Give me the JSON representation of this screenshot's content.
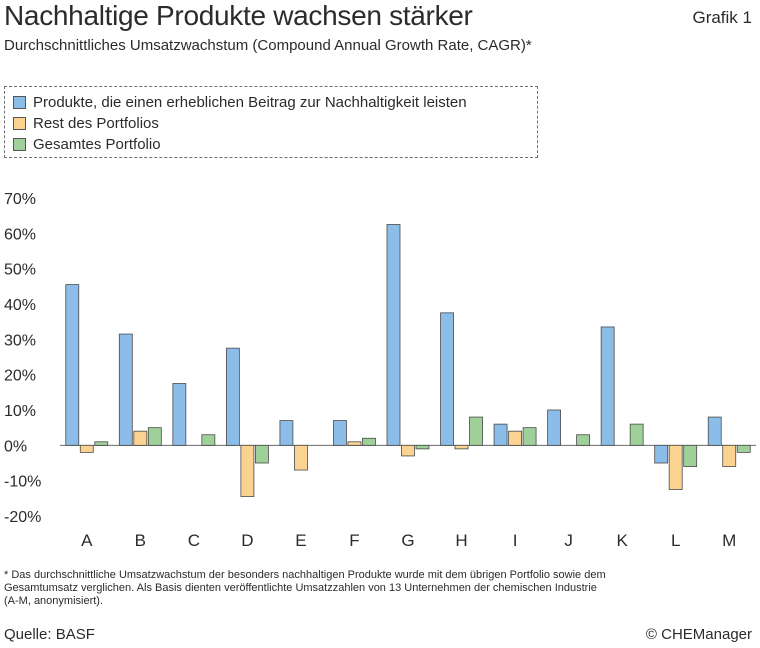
{
  "header": {
    "title": "Nachhaltige Produkte wachsen stärker",
    "figure_label": "Grafik 1",
    "subtitle": "Durchschnittliches Umsatzwachstum (Compound Annual Growth Rate, CAGR)*"
  },
  "footer": {
    "footnote": "* Das durchschnittliche Umsatzwachstum der besonders nachhaltigen Produkte wurde mit dem übrigen Portfolio sowie dem Gesamtumsatz verglichen. Als Basis dienten veröffentlichte Umsatzzahlen von 13 Unternehmen der chemischen Industrie (A-M, anonymisiert).",
    "source": "Quelle: BASF",
    "copyright": "© CHEManager"
  },
  "colors": {
    "sustainable": "#8cbde8",
    "rest": "#fbd391",
    "total": "#9fd09a",
    "bar_stroke": "#4a4a4a",
    "text": "#2b2b2b"
  },
  "chart_data": {
    "type": "bar",
    "title": "Nachhaltige Produkte wachsen stärker",
    "subtitle": "Durchschnittliches Umsatzwachstum (Compound Annual Growth Rate, CAGR)*",
    "xlabel": "",
    "ylabel": "",
    "ylim": [
      -20,
      70
    ],
    "yticks": [
      -20,
      -10,
      0,
      10,
      20,
      30,
      40,
      50,
      60,
      70
    ],
    "ytick_labels": [
      "-20%",
      "-10%",
      "0%",
      "10%",
      "20%",
      "30%",
      "40%",
      "50%",
      "60%",
      "70%"
    ],
    "grid": false,
    "legend_position": "top-left",
    "categories": [
      "A",
      "B",
      "C",
      "D",
      "E",
      "F",
      "G",
      "H",
      "I",
      "J",
      "K",
      "L",
      "M"
    ],
    "series": [
      {
        "name": "Produkte, die einen erheblichen Beitrag zur Nachhaltigkeit leisten",
        "color": "#8cbde8",
        "values": [
          45.5,
          31.5,
          17.5,
          27.5,
          7,
          7,
          62.5,
          37.5,
          6,
          10,
          33.5,
          -5,
          8
        ]
      },
      {
        "name": "Rest des Portfolios",
        "color": "#fbd391",
        "values": [
          -2,
          4,
          0,
          -14.5,
          -7,
          1,
          -3,
          -1,
          4,
          0,
          0,
          -12.5,
          -6
        ]
      },
      {
        "name": "Gesamtes Portfolio",
        "color": "#9fd09a",
        "values": [
          1,
          5,
          3,
          -5,
          0,
          2,
          -1,
          8,
          5,
          3,
          6,
          -6,
          -2
        ]
      }
    ]
  }
}
